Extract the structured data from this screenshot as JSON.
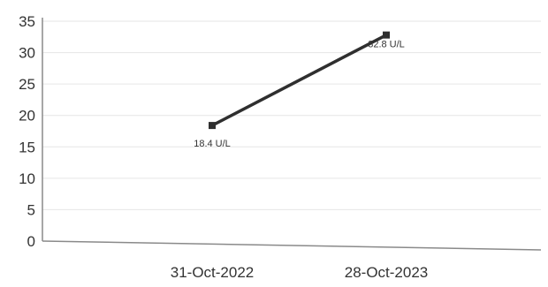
{
  "chart_data": {
    "type": "line",
    "title": "",
    "xlabel": "",
    "ylabel": "",
    "x": [
      "31-Oct-2022",
      "28-Oct-2023"
    ],
    "series": [
      {
        "values": [
          18.4,
          32.8
        ],
        "data_labels": [
          "18.4 U/L",
          "32.8 U/L"
        ]
      }
    ],
    "ylim": [
      0,
      35
    ],
    "y_ticks": [
      "0",
      "5",
      "10",
      "15",
      "20",
      "25",
      "30",
      "35"
    ],
    "grid": true,
    "legend": "none",
    "line_color": "#2f2f2f"
  }
}
